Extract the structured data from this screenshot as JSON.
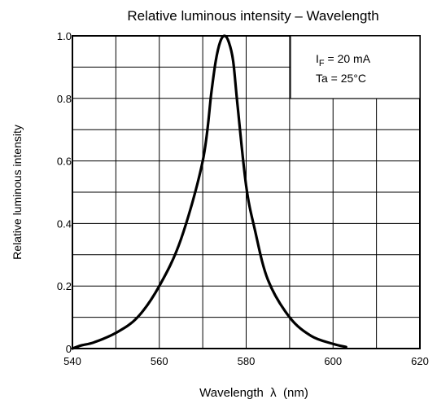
{
  "chart_data": {
    "type": "line",
    "title": "Relative luminous intensity – Wavelength",
    "xlabel": "Wavelength  λ  (nm)",
    "ylabel": "Relative luminous intensity",
    "xlim": [
      540,
      620
    ],
    "ylim": [
      0,
      1.0
    ],
    "x_ticks": [
      "540",
      "560",
      "580",
      "600",
      "620"
    ],
    "y_ticks": [
      "0",
      "0.2",
      "0.4",
      "0.6",
      "0.8",
      "1.0"
    ],
    "grid": true,
    "annotation": {
      "line1_main": "I",
      "line1_sub": "F",
      "line1_rest": " = 20 mA",
      "line2": "Ta = 25°C"
    },
    "series": [
      {
        "x": [
          540,
          542,
          545,
          550,
          555,
          560,
          565,
          570,
          572,
          573,
          574,
          575,
          576,
          577,
          578,
          580,
          582,
          585,
          590,
          595,
          600,
          603
        ],
        "y": [
          0.0,
          0.01,
          0.02,
          0.05,
          0.1,
          0.2,
          0.35,
          0.6,
          0.82,
          0.92,
          0.98,
          1.0,
          0.98,
          0.92,
          0.78,
          0.52,
          0.38,
          0.22,
          0.1,
          0.04,
          0.015,
          0.005
        ]
      }
    ]
  }
}
